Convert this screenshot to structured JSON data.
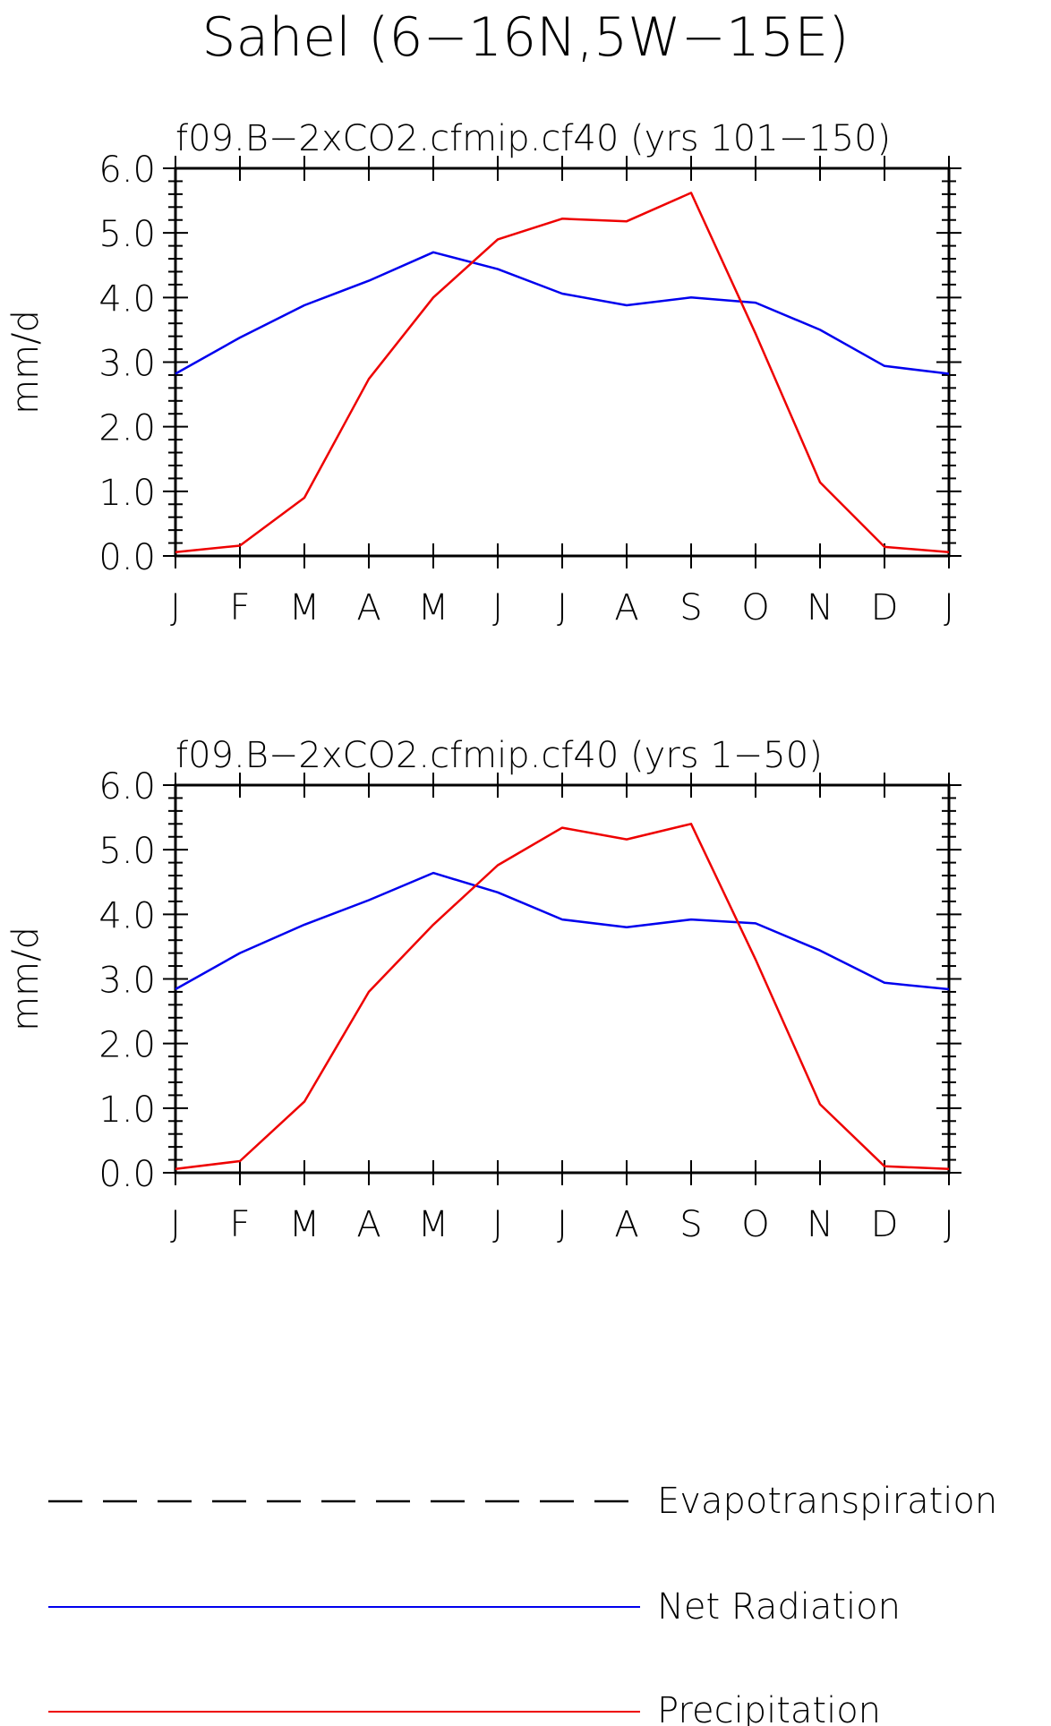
{
  "title": "Sahel (6−16N,5W−15E)",
  "colors": {
    "net_radiation": "#0000ee",
    "precipitation": "#ee0000",
    "evapotranspiration": "#000000",
    "axis": "#000000"
  },
  "chart_data": [
    {
      "type": "line",
      "title": "f09.B−2xCO2.cfmip.cf40 (yrs 101−150)",
      "xlabel": "",
      "ylabel": "mm/d",
      "x": [
        "J",
        "F",
        "M",
        "A",
        "M",
        "J",
        "J",
        "A",
        "S",
        "O",
        "N",
        "D",
        "J"
      ],
      "ylim": [
        0,
        6
      ],
      "yticks": [
        "0.0",
        "1.0",
        "2.0",
        "3.0",
        "4.0",
        "5.0",
        "6.0"
      ],
      "grid": false,
      "series": [
        {
          "name": "Net Radiation",
          "color": "#0000ee",
          "values": [
            2.82,
            3.38,
            3.88,
            4.26,
            4.7,
            4.44,
            4.06,
            3.88,
            4.0,
            3.92,
            3.5,
            2.94,
            2.82
          ]
        },
        {
          "name": "Precipitation",
          "color": "#ee0000",
          "values": [
            0.06,
            0.16,
            0.9,
            2.74,
            4.0,
            4.9,
            5.22,
            5.18,
            5.62,
            3.44,
            1.14,
            0.14,
            0.06
          ]
        }
      ]
    },
    {
      "type": "line",
      "title": "f09.B−2xCO2.cfmip.cf40 (yrs 1−50)",
      "xlabel": "",
      "ylabel": "mm/d",
      "x": [
        "J",
        "F",
        "M",
        "A",
        "M",
        "J",
        "J",
        "A",
        "S",
        "O",
        "N",
        "D",
        "J"
      ],
      "ylim": [
        0,
        6
      ],
      "yticks": [
        "0.0",
        "1.0",
        "2.0",
        "3.0",
        "4.0",
        "5.0",
        "6.0"
      ],
      "grid": false,
      "series": [
        {
          "name": "Net Radiation",
          "color": "#0000ee",
          "values": [
            2.84,
            3.4,
            3.84,
            4.22,
            4.64,
            4.34,
            3.92,
            3.8,
            3.92,
            3.86,
            3.44,
            2.94,
            2.84
          ]
        },
        {
          "name": "Precipitation",
          "color": "#ee0000",
          "values": [
            0.06,
            0.18,
            1.1,
            2.8,
            3.84,
            4.76,
            5.34,
            5.16,
            5.4,
            3.3,
            1.06,
            0.1,
            0.06
          ]
        }
      ]
    }
  ],
  "legend": {
    "position": "bottom",
    "items": [
      {
        "label": "Evapotranspiration",
        "style": "dashed",
        "color": "#000000"
      },
      {
        "label": "Net Radiation",
        "style": "solid",
        "color": "#0000ee"
      },
      {
        "label": "Precipitation",
        "style": "solid",
        "color": "#ee0000"
      }
    ]
  }
}
